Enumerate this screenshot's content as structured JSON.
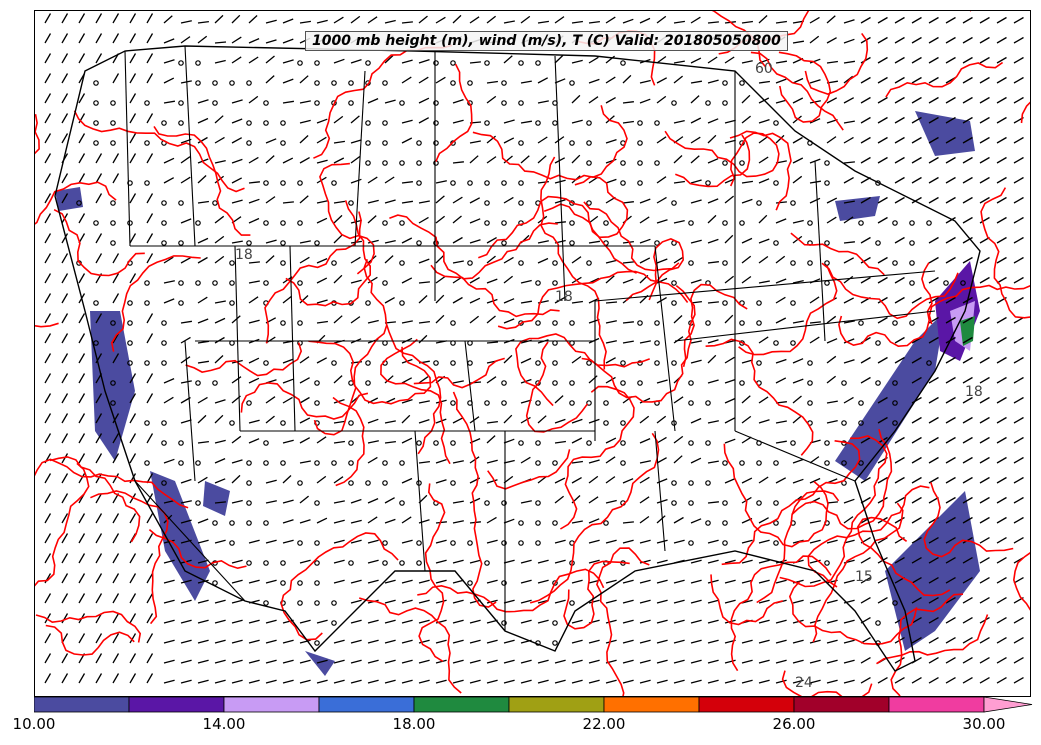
{
  "title": "1000 mb height (m), wind (m/s), T (C) Valid: 201805050800",
  "colorbar": {
    "colors": [
      "#4b4ba0",
      "#5a16a6",
      "#c89bf4",
      "#3a6ed8",
      "#1f8a3f",
      "#a0a014",
      "#ff7000",
      "#d4000a",
      "#a1002a",
      "#f03ca0",
      "#ff9ed2"
    ],
    "tick_labels": [
      "10.00",
      "14.00",
      "18.00",
      "22.00",
      "26.00",
      "30.00"
    ]
  },
  "contour_labels": [
    "60",
    "24",
    "18",
    "18",
    "15",
    "18"
  ],
  "colors": {
    "temperature_contours": "#ff0000",
    "height_contours": "#000000",
    "wind_barbs": "#000000"
  }
}
